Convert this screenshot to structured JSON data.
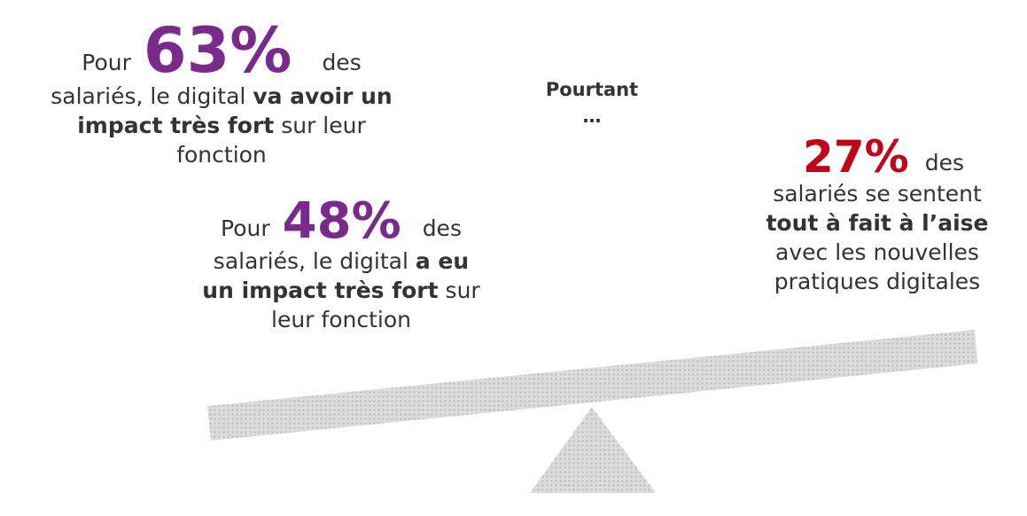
{
  "left_top": {
    "intro": "Pour",
    "figure": "63%",
    "after": "des",
    "lines": [
      [
        "salariés, le digital",
        "va avoir un"
      ],
      [
        "impact très fort",
        "sur leur"
      ],
      [
        "fonction"
      ]
    ]
  },
  "left_bottom": {
    "intro": "Pour",
    "figure": "48%",
    "after": "des",
    "lines": [
      [
        "salariés, le digital",
        "a eu"
      ],
      [
        "un impact très fort",
        "sur"
      ],
      [
        "leur fonction"
      ]
    ]
  },
  "middle": {
    "lines": [
      "Pourtant",
      "…"
    ]
  },
  "right": {
    "figure": "27%",
    "after": "des",
    "lines": [
      "salariés se sentent",
      "tout à fait à l’aise",
      "avec les nouvelles",
      "pratiques digitales"
    ]
  }
}
